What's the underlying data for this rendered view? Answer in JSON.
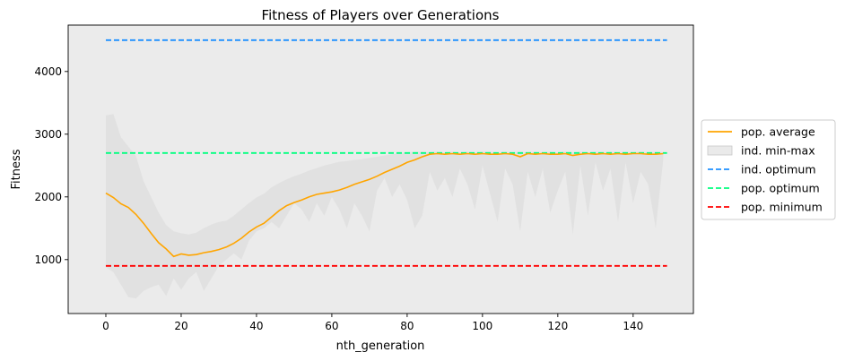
{
  "chart_data": {
    "type": "line",
    "title": "Fitness of Players over Generations",
    "xlabel": "nth_generation",
    "ylabel": "Fitness",
    "xlim": [
      -10,
      156
    ],
    "ylim": [
      140,
      4740
    ],
    "xticks": [
      0,
      20,
      40,
      60,
      80,
      100,
      120,
      140
    ],
    "yticks": [
      1000,
      2000,
      3000,
      4000
    ],
    "grid": false,
    "legend_position": "right (outside plot area)",
    "series": [
      {
        "name": "pop. average",
        "kind": "line",
        "color": "#ffa500",
        "x": [
          0,
          2,
          4,
          6,
          8,
          10,
          12,
          14,
          16,
          18,
          20,
          22,
          24,
          26,
          28,
          30,
          32,
          34,
          36,
          38,
          40,
          42,
          44,
          46,
          48,
          50,
          52,
          54,
          56,
          58,
          60,
          62,
          64,
          66,
          68,
          70,
          72,
          74,
          76,
          78,
          80,
          82,
          84,
          86,
          88,
          90,
          92,
          94,
          96,
          98,
          100,
          102,
          104,
          106,
          108,
          110,
          112,
          114,
          116,
          118,
          120,
          122,
          124,
          126,
          128,
          130,
          132,
          134,
          136,
          138,
          140,
          142,
          144,
          146,
          148
        ],
        "y": [
          2060,
          1990,
          1890,
          1830,
          1720,
          1580,
          1420,
          1270,
          1170,
          1050,
          1090,
          1070,
          1080,
          1110,
          1130,
          1160,
          1200,
          1260,
          1340,
          1440,
          1520,
          1580,
          1680,
          1780,
          1860,
          1910,
          1950,
          2000,
          2040,
          2060,
          2080,
          2110,
          2150,
          2200,
          2240,
          2280,
          2330,
          2390,
          2440,
          2490,
          2550,
          2590,
          2640,
          2680,
          2690,
          2680,
          2690,
          2680,
          2690,
          2680,
          2690,
          2680,
          2680,
          2690,
          2680,
          2640,
          2690,
          2680,
          2690,
          2680,
          2680,
          2690,
          2660,
          2680,
          2690,
          2680,
          2690,
          2680,
          2690,
          2680,
          2690,
          2690,
          2680,
          2680,
          2690
        ]
      },
      {
        "name": "ind. min-max",
        "kind": "band",
        "color": "#d9d9d9",
        "x": [
          0,
          2,
          4,
          6,
          8,
          10,
          12,
          14,
          16,
          18,
          20,
          22,
          24,
          26,
          28,
          30,
          32,
          34,
          36,
          38,
          40,
          42,
          44,
          46,
          48,
          50,
          52,
          54,
          56,
          58,
          60,
          62,
          64,
          66,
          68,
          70,
          72,
          74,
          76,
          78,
          80,
          82,
          84,
          86,
          88,
          90,
          92,
          94,
          96,
          98,
          100,
          102,
          104,
          106,
          108,
          110,
          112,
          114,
          116,
          118,
          120,
          122,
          124,
          126,
          128,
          130,
          132,
          134,
          136,
          138,
          140,
          142,
          144,
          146,
          148
        ],
        "upper": [
          3300,
          3320,
          2950,
          2800,
          2650,
          2250,
          2000,
          1750,
          1550,
          1450,
          1420,
          1400,
          1430,
          1500,
          1560,
          1600,
          1620,
          1700,
          1800,
          1900,
          1990,
          2050,
          2150,
          2220,
          2280,
          2330,
          2370,
          2420,
          2460,
          2500,
          2530,
          2560,
          2570,
          2590,
          2600,
          2620,
          2640,
          2660,
          2680,
          2700,
          2710,
          2720,
          2720,
          2710,
          2720,
          2710,
          2720,
          2710,
          2720,
          2710,
          2720,
          2720,
          2710,
          2720,
          2710,
          2720,
          2710,
          2720,
          2710,
          2720,
          2710,
          2720,
          2710,
          2720,
          2710,
          2720,
          2710,
          2720,
          2710,
          2720,
          2710,
          2720,
          2710,
          2720,
          2710
        ],
        "lower": [
          880,
          800,
          600,
          400,
          380,
          500,
          560,
          600,
          420,
          700,
          520,
          700,
          800,
          500,
          700,
          900,
          1000,
          1100,
          1000,
          1300,
          1450,
          1500,
          1600,
          1500,
          1700,
          1900,
          1800,
          1600,
          1900,
          1700,
          2000,
          1800,
          1500,
          1900,
          1700,
          1450,
          2100,
          2300,
          2000,
          2200,
          1950,
          1500,
          1700,
          2400,
          2100,
          2300,
          2000,
          2450,
          2200,
          1800,
          2500,
          2050,
          1600,
          2450,
          2200,
          1450,
          2400,
          2000,
          2450,
          1750,
          2100,
          2400,
          1400,
          2500,
          1700,
          2550,
          2100,
          2450,
          1600,
          2550,
          1900,
          2400,
          2200,
          1500,
          2600
        ]
      },
      {
        "name": "ind. optimum",
        "kind": "hline",
        "color": "#1e90ff",
        "y": 4500,
        "x": [
          0,
          149
        ]
      },
      {
        "name": "pop. optimum",
        "kind": "hline",
        "color": "#00ff7f",
        "y": 2700,
        "x": [
          0,
          149
        ]
      },
      {
        "name": "pop. minimum",
        "kind": "hline",
        "color": "#ff0000",
        "y": 900,
        "x": [
          0,
          149
        ]
      }
    ]
  }
}
